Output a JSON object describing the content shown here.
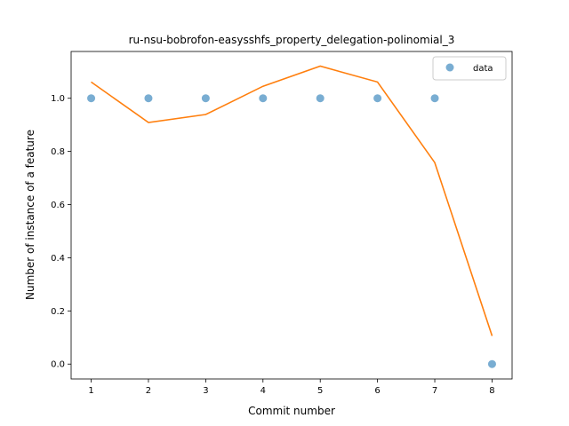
{
  "chart_data": {
    "type": "scatter",
    "title": "ru-nsu-bobrofon-easysshfs_property_delegation-polinomial_3",
    "xlabel": "Commit number",
    "ylabel": "Number of instance of a feature",
    "x_ticks": [
      1,
      2,
      3,
      4,
      5,
      6,
      7,
      8
    ],
    "y_ticks": [
      0.0,
      0.2,
      0.4,
      0.6,
      0.8,
      1.0
    ],
    "xlim": [
      0.65,
      8.35
    ],
    "ylim": [
      -0.056,
      1.176
    ],
    "grid": false,
    "legend_position": "top-right",
    "series": [
      {
        "name": "data",
        "kind": "scatter",
        "color": "#1f77b4",
        "x": [
          1,
          2,
          3,
          4,
          5,
          6,
          7,
          8
        ],
        "y": [
          1.0,
          1.0,
          1.0,
          1.0,
          1.0,
          1.0,
          1.0,
          0.0
        ]
      },
      {
        "kind": "line",
        "color": "#ff7f0e",
        "x": [
          1,
          2,
          3,
          4,
          5,
          6,
          7,
          8
        ],
        "y": [
          1.061,
          0.909,
          0.939,
          1.045,
          1.121,
          1.061,
          0.758,
          0.106
        ]
      }
    ]
  }
}
